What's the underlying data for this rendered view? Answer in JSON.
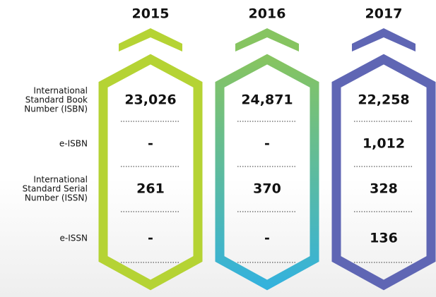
{
  "table": {
    "columns": [
      {
        "year": "2015",
        "color": "#b5d334",
        "color_bottom": "#b5d334"
      },
      {
        "year": "2016",
        "color": "#86c461",
        "color_bottom": "#34b2dc"
      },
      {
        "year": "2017",
        "color": "#5f66b4",
        "color_bottom": "#5f66b4"
      }
    ],
    "rows": [
      {
        "label": [
          "International",
          "Standard Book",
          "Number (ISBN)"
        ],
        "values": [
          "23,026",
          "24,871",
          "22,258"
        ]
      },
      {
        "label": [
          "e-ISBN"
        ],
        "values": [
          "-",
          "-",
          "1,012"
        ]
      },
      {
        "label": [
          "International",
          "Standard Serial",
          "Number (ISSN)"
        ],
        "values": [
          "261",
          "370",
          "328"
        ]
      },
      {
        "label": [
          "e-ISSN"
        ],
        "values": [
          "-",
          "-",
          "136"
        ]
      }
    ]
  }
}
